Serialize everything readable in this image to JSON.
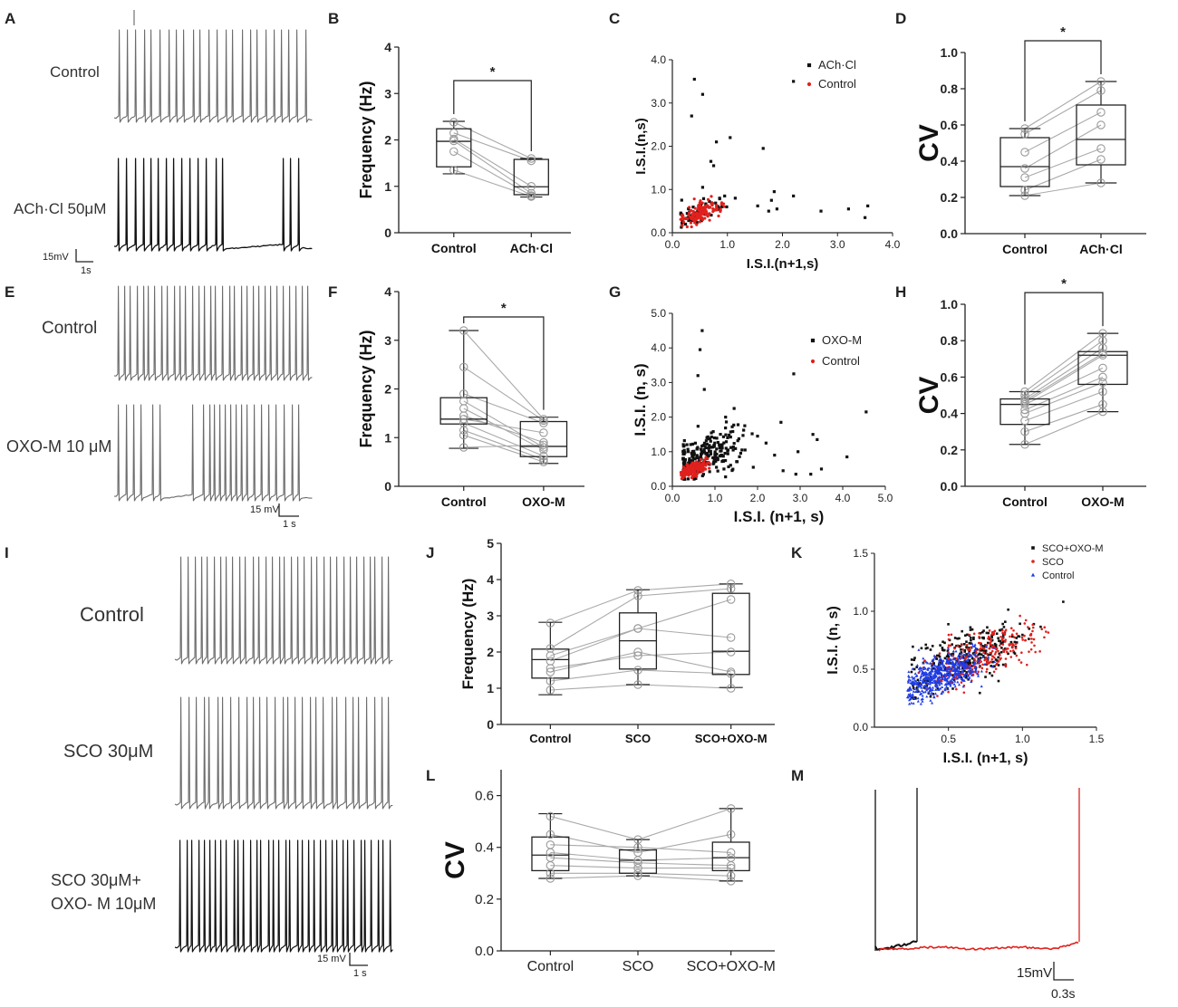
{
  "figure": {
    "panel_labels": [
      "A",
      "B",
      "C",
      "D",
      "E",
      "F",
      "G",
      "H",
      "I",
      "J",
      "K",
      "L",
      "M"
    ],
    "significance_marker": "*"
  },
  "colors": {
    "black": "#111111",
    "red": "#e0211d",
    "blue": "#1f3de6",
    "gray_line": "#a9a9a9",
    "box_point": "#999999",
    "trace_gray": "#6b6b6b"
  },
  "traces": {
    "A": {
      "labels": [
        "Control",
        "ACh·Cl 50μM"
      ],
      "scalebar": {
        "v": "15mV",
        "t": "1s"
      }
    },
    "E": {
      "labels": [
        "Control",
        "OXO-M 10 μM"
      ],
      "scalebar": {
        "v": "15 mV",
        "t": "1 s"
      }
    },
    "I": {
      "labels": [
        "Control",
        "SCO 30μM",
        "SCO 30μM+",
        "OXO- M 10μM"
      ],
      "scalebar": {
        "v": "15 mV",
        "t": "1 s"
      }
    },
    "M": {
      "scalebar": {
        "v": "15mV",
        "t": "0.3s"
      }
    }
  },
  "chart_data": [
    {
      "panel": "B",
      "type": "box",
      "ylabel": "Frequency (Hz)",
      "ylim": [
        0,
        4
      ],
      "yticks": [
        0,
        1,
        2,
        3,
        4
      ],
      "yticklabels": [
        "0",
        "1",
        "2",
        "3",
        "4"
      ],
      "categories": [
        "Control",
        "ACh·Cl"
      ],
      "boxes": [
        {
          "q1": 1.42,
          "median": 1.97,
          "q3": 2.24,
          "whisker_low": 1.27,
          "whisker_high": 2.4
        },
        {
          "q1": 0.82,
          "median": 0.99,
          "q3": 1.58,
          "whisker_low": 0.77,
          "whisker_high": 1.6
        }
      ],
      "paired": [
        [
          2.38,
          1.6
        ],
        [
          2.15,
          1.55
        ],
        [
          1.98,
          0.85
        ],
        [
          2.02,
          1.0
        ],
        [
          1.75,
          0.8
        ],
        [
          1.35,
          0.78
        ]
      ],
      "significance": "*"
    },
    {
      "panel": "C",
      "type": "scatter",
      "xlabel": "I.S.I.(n+1,s)",
      "ylabel": "I.S.I.(n,s)",
      "xlim": [
        0,
        4
      ],
      "ylim": [
        0,
        4
      ],
      "xticks": [
        0,
        1,
        2,
        3,
        4
      ],
      "yticks": [
        0,
        1,
        2,
        3,
        4
      ],
      "xticklabels": [
        "0.0",
        "1.0",
        "2.0",
        "3.0",
        "4.0"
      ],
      "yticklabels": [
        "0.0",
        "1.0",
        "2.0",
        "3.0",
        "4.0"
      ],
      "legend": [
        "ACh·Cl",
        "Control"
      ],
      "series": [
        {
          "name": "ACh·Cl",
          "color": "#111111",
          "marker": "square",
          "points": [
            [
              0.4,
              3.55
            ],
            [
              0.55,
              3.2
            ],
            [
              0.35,
              2.7
            ],
            [
              2.2,
              3.5
            ],
            [
              0.8,
              2.1
            ],
            [
              1.05,
              2.2
            ],
            [
              1.65,
              1.95
            ],
            [
              0.75,
              1.55
            ],
            [
              0.7,
              1.65
            ],
            [
              1.85,
              0.95
            ],
            [
              1.8,
              0.75
            ],
            [
              2.2,
              0.85
            ],
            [
              1.55,
              0.62
            ],
            [
              1.9,
              0.55
            ],
            [
              2.7,
              0.5
            ],
            [
              3.2,
              0.55
            ],
            [
              3.55,
              0.62
            ],
            [
              3.5,
              0.35
            ],
            [
              1.75,
              0.5
            ],
            [
              0.9,
              0.6
            ],
            [
              0.95,
              0.85
            ],
            [
              0.55,
              1.05
            ]
          ],
          "cloud": {
            "cx": 0.5,
            "cy": 0.45,
            "sx": 0.25,
            "sy": 0.22,
            "n": 60,
            "xmin": 0.15,
            "ymin": 0.1
          }
        },
        {
          "name": "Control",
          "color": "#e0211d",
          "marker": "circle",
          "points": [],
          "cloud": {
            "cx": 0.52,
            "cy": 0.48,
            "sx": 0.18,
            "sy": 0.18,
            "n": 140,
            "xmin": 0.15,
            "ymin": 0.12
          }
        }
      ]
    },
    {
      "panel": "D",
      "type": "box",
      "ylabel": "CV",
      "ylim": [
        0,
        1
      ],
      "yticks": [
        0,
        0.2,
        0.4,
        0.6,
        0.8,
        1.0
      ],
      "yticklabels": [
        "0.0",
        "0.2",
        "0.4",
        "0.6",
        "0.8",
        "1.0"
      ],
      "categories": [
        "Control",
        "ACh·Cl"
      ],
      "boxes": [
        {
          "q1": 0.26,
          "median": 0.37,
          "q3": 0.53,
          "whisker_low": 0.21,
          "whisker_high": 0.58
        },
        {
          "q1": 0.38,
          "median": 0.52,
          "q3": 0.71,
          "whisker_low": 0.28,
          "whisker_high": 0.84
        }
      ],
      "paired": [
        [
          0.58,
          0.84
        ],
        [
          0.55,
          0.79
        ],
        [
          0.45,
          0.67
        ],
        [
          0.36,
          0.6
        ],
        [
          0.31,
          0.47
        ],
        [
          0.24,
          0.41
        ],
        [
          0.21,
          0.28
        ]
      ],
      "significance": "*"
    },
    {
      "panel": "F",
      "type": "box",
      "ylabel": "Frequency (Hz)",
      "ylim": [
        0,
        4
      ],
      "yticks": [
        0,
        1,
        2,
        3,
        4
      ],
      "yticklabels": [
        "0",
        "1",
        "2",
        "3",
        "4"
      ],
      "categories": [
        "Control",
        "OXO-M"
      ],
      "boxes": [
        {
          "q1": 1.28,
          "median": 1.38,
          "q3": 1.82,
          "whisker_low": 0.78,
          "whisker_high": 3.2
        },
        {
          "q1": 0.61,
          "median": 0.82,
          "q3": 1.33,
          "whisker_low": 0.47,
          "whisker_high": 1.42
        }
      ],
      "paired": [
        [
          3.2,
          1.38
        ],
        [
          2.45,
          1.35
        ],
        [
          1.9,
          1.3
        ],
        [
          1.75,
          0.8
        ],
        [
          1.6,
          0.75
        ],
        [
          1.45,
          0.9
        ],
        [
          1.38,
          1.1
        ],
        [
          1.3,
          0.62
        ],
        [
          1.15,
          0.55
        ],
        [
          1.05,
          0.5
        ],
        [
          0.8,
          0.85
        ]
      ],
      "significance": "*"
    },
    {
      "panel": "G",
      "type": "scatter",
      "xlabel": "I.S.I. (n+1, s)",
      "ylabel": "I.S.I. (n, s)",
      "xlim": [
        0,
        5
      ],
      "ylim": [
        0,
        5
      ],
      "xticks": [
        0,
        1,
        2,
        3,
        4,
        5
      ],
      "yticks": [
        0,
        1,
        2,
        3,
        4,
        5
      ],
      "xticklabels": [
        "0.0",
        "1.0",
        "2.0",
        "3.0",
        "4.0",
        "5.0"
      ],
      "yticklabels": [
        "0.0",
        "1.0",
        "2.0",
        "3.0",
        "4.0",
        "5.0"
      ],
      "legend": [
        "OXO-M",
        "Control"
      ],
      "series": [
        {
          "name": "OXO-M",
          "color": "#111111",
          "marker": "square",
          "points": [
            [
              0.7,
              4.5
            ],
            [
              0.65,
              3.95
            ],
            [
              0.6,
              3.2
            ],
            [
              0.75,
              2.8
            ],
            [
              2.85,
              3.25
            ],
            [
              4.55,
              2.15
            ],
            [
              2.55,
              1.85
            ],
            [
              3.3,
              1.5
            ],
            [
              3.4,
              1.35
            ],
            [
              2.95,
              1.0
            ],
            [
              4.1,
              0.85
            ],
            [
              3.5,
              0.5
            ],
            [
              3.25,
              0.35
            ],
            [
              2.9,
              0.35
            ],
            [
              1.45,
              2.25
            ],
            [
              1.25,
              2.0
            ],
            [
              1.7,
              1.75
            ],
            [
              2.0,
              1.45
            ],
            [
              2.2,
              1.25
            ],
            [
              2.4,
              0.9
            ],
            [
              1.9,
              0.55
            ],
            [
              2.6,
              0.45
            ]
          ],
          "cloud": {
            "cx": 0.75,
            "cy": 0.85,
            "sx": 0.45,
            "sy": 0.55,
            "n": 260,
            "xmin": 0.25,
            "ymin": 0.2
          }
        },
        {
          "name": "Control",
          "color": "#e0211d",
          "marker": "circle",
          "points": [],
          "cloud": {
            "cx": 0.5,
            "cy": 0.5,
            "sx": 0.17,
            "sy": 0.17,
            "n": 160,
            "xmin": 0.2,
            "ymin": 0.2
          }
        }
      ]
    },
    {
      "panel": "H",
      "type": "box",
      "ylabel": "CV",
      "ylim": [
        0,
        1
      ],
      "yticks": [
        0,
        0.2,
        0.4,
        0.6,
        0.8,
        1.0
      ],
      "yticklabels": [
        "0.0",
        "0.2",
        "0.4",
        "0.6",
        "0.8",
        "1.0"
      ],
      "categories": [
        "Control",
        "OXO-M"
      ],
      "boxes": [
        {
          "q1": 0.34,
          "median": 0.45,
          "q3": 0.48,
          "whisker_low": 0.23,
          "whisker_high": 0.52
        },
        {
          "q1": 0.56,
          "median": 0.72,
          "q3": 0.74,
          "whisker_low": 0.41,
          "whisker_high": 0.84
        }
      ],
      "paired": [
        [
          0.52,
          0.84
        ],
        [
          0.5,
          0.8
        ],
        [
          0.48,
          0.76
        ],
        [
          0.47,
          0.73
        ],
        [
          0.46,
          0.72
        ],
        [
          0.45,
          0.65
        ],
        [
          0.42,
          0.6
        ],
        [
          0.4,
          0.57
        ],
        [
          0.36,
          0.52
        ],
        [
          0.3,
          0.45
        ],
        [
          0.23,
          0.41
        ]
      ],
      "significance": "*"
    },
    {
      "panel": "J",
      "type": "box",
      "ylabel": "Frequency (Hz)",
      "ylim": [
        0,
        5
      ],
      "yticks": [
        0,
        1,
        2,
        3,
        4,
        5
      ],
      "yticklabels": [
        "0",
        "1",
        "2",
        "3",
        "4",
        "5"
      ],
      "categories": [
        "Control",
        "SCO",
        "SCO+OXO-M"
      ],
      "boxes": [
        {
          "q1": 1.28,
          "median": 1.79,
          "q3": 2.08,
          "whisker_low": 0.82,
          "whisker_high": 2.82
        },
        {
          "q1": 1.53,
          "median": 2.31,
          "q3": 3.08,
          "whisker_low": 1.1,
          "whisker_high": 3.72
        },
        {
          "q1": 1.38,
          "median": 2.02,
          "q3": 3.62,
          "whisker_low": 1.02,
          "whisker_high": 3.88
        }
      ],
      "paired": [
        [
          2.8,
          3.7,
          3.88
        ],
        [
          2.1,
          3.55,
          3.75
        ],
        [
          1.9,
          2.65,
          3.45
        ],
        [
          1.75,
          2.65,
          2.4
        ],
        [
          1.55,
          1.9,
          2.0
        ],
        [
          1.45,
          2.0,
          1.45
        ],
        [
          1.2,
          1.5,
          1.4
        ],
        [
          0.95,
          1.1,
          1.0
        ]
      ]
    },
    {
      "panel": "K",
      "type": "scatter",
      "xlabel": "I.S.I. (n+1, s)",
      "ylabel": "I.S.I. (n, s)",
      "xlim": [
        0,
        1.5
      ],
      "ylim": [
        0,
        1.5
      ],
      "xticks": [
        0.5,
        1.0,
        1.5
      ],
      "yticks": [
        0.0,
        0.5,
        1.0,
        1.5
      ],
      "xticklabels": [
        "0.5",
        "1.0",
        "1.5"
      ],
      "yticklabels": [
        "0.0",
        "0.5",
        "1.0",
        "1.5"
      ],
      "legend": [
        "SCO+OXO-M",
        "SCO",
        "Control"
      ],
      "series": [
        {
          "name": "SCO+OXO-M",
          "color": "#111111",
          "marker": "square",
          "points": [],
          "cloud": {
            "cx": 0.6,
            "cy": 0.6,
            "sx": 0.2,
            "sy": 0.18,
            "n": 320,
            "xmin": 0.25,
            "ymin": 0.22
          }
        },
        {
          "name": "SCO",
          "color": "#e0211d",
          "marker": "circle",
          "points": [],
          "cloud": {
            "cx": 0.72,
            "cy": 0.62,
            "sx": 0.2,
            "sy": 0.18,
            "n": 260,
            "xmin": 0.28,
            "ymin": 0.25
          }
        },
        {
          "name": "Control",
          "color": "#1f3de6",
          "marker": "triangle",
          "points": [],
          "cloud": {
            "cx": 0.45,
            "cy": 0.45,
            "sx": 0.14,
            "sy": 0.13,
            "n": 520,
            "xmin": 0.22,
            "ymin": 0.2
          }
        }
      ]
    },
    {
      "panel": "L",
      "type": "box",
      "ylabel": "CV",
      "ylim": [
        0,
        0.7
      ],
      "yticks": [
        0,
        0.2,
        0.4,
        0.6
      ],
      "yticklabels": [
        "0.0",
        "0.2",
        "0.4",
        "0.6"
      ],
      "categories": [
        "Control",
        "SCO",
        "SCO+OXO-M"
      ],
      "boxes": [
        {
          "q1": 0.31,
          "median": 0.37,
          "q3": 0.44,
          "whisker_low": 0.28,
          "whisker_high": 0.53
        },
        {
          "q1": 0.3,
          "median": 0.35,
          "q3": 0.39,
          "whisker_low": 0.29,
          "whisker_high": 0.43
        },
        {
          "q1": 0.31,
          "median": 0.36,
          "q3": 0.42,
          "whisker_low": 0.27,
          "whisker_high": 0.55
        }
      ],
      "paired": [
        [
          0.52,
          0.43,
          0.55
        ],
        [
          0.45,
          0.38,
          0.45
        ],
        [
          0.41,
          0.4,
          0.38
        ],
        [
          0.38,
          0.35,
          0.36
        ],
        [
          0.36,
          0.34,
          0.33
        ],
        [
          0.33,
          0.32,
          0.32
        ],
        [
          0.3,
          0.3,
          0.29
        ],
        [
          0.28,
          0.29,
          0.27
        ]
      ]
    }
  ]
}
